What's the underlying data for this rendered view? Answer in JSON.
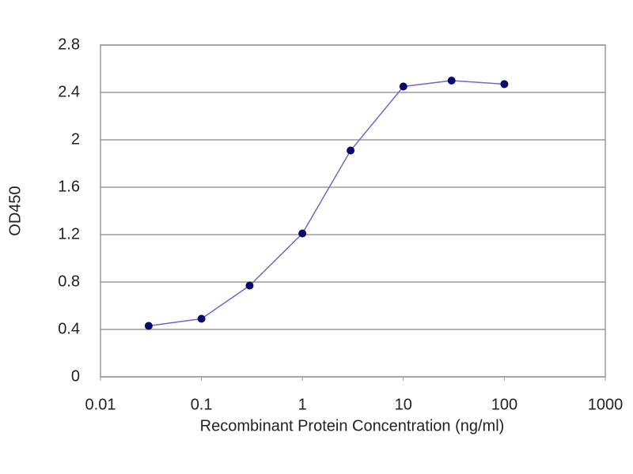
{
  "chart_data": {
    "type": "line",
    "x_label": "Recombinant Protein Concentration (ng/ml)",
    "y_label": "OD450",
    "x": [
      0.03,
      0.1,
      0.3,
      1,
      3,
      10,
      30,
      100
    ],
    "series": [
      {
        "name": "OD450",
        "color": "#6a6ad0",
        "marker_color": "#0a0a6a",
        "values": [
          0.43,
          0.49,
          0.77,
          1.21,
          1.91,
          2.45,
          2.5,
          2.47
        ]
      }
    ],
    "xlim": [
      0.01,
      1000
    ],
    "xticks": [
      0.01,
      0.1,
      1,
      10,
      100,
      1000
    ],
    "xscale": "log",
    "ylim": [
      0,
      2.8
    ],
    "yticks": [
      0,
      0.4,
      0.8,
      1.2,
      1.6,
      2,
      2.4,
      2.8
    ],
    "grid": true
  }
}
